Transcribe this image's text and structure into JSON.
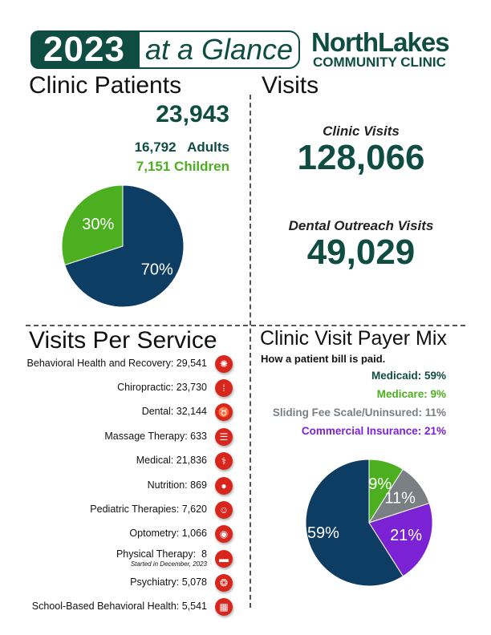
{
  "header": {
    "year": "2023",
    "tagline": "at a Glance",
    "logo_line1": "NorthLakes",
    "logo_line2": "COMMUNITY CLINIC"
  },
  "patients": {
    "title": "Clinic Patients",
    "total": "23,943",
    "adults": "16,792   Adults",
    "children": "7,151 Children"
  },
  "visits": {
    "title": "Visits",
    "clinic_label": "Clinic Visits",
    "clinic_value": "128,066",
    "dental_label": "Dental Outreach Visits",
    "dental_value": "49,029"
  },
  "services": {
    "title": "Visits Per Service",
    "items": [
      {
        "label": "Behavioral Health and Recovery: 29,541",
        "icon": "brain-icon",
        "glyph": "✺"
      },
      {
        "label": "Chiropractic: 23,730",
        "icon": "spine-icon",
        "glyph": "⁞"
      },
      {
        "label": "Dental: 32,144",
        "icon": "tooth-icon",
        "glyph": "♉"
      },
      {
        "label": "Massage Therapy: 633",
        "icon": "massage-icon",
        "glyph": "☰"
      },
      {
        "label": "Medical: 21,836",
        "icon": "stethoscope-icon",
        "glyph": "⚕"
      },
      {
        "label": "Nutrition: 869",
        "icon": "apple-icon",
        "glyph": "●"
      },
      {
        "label": "Pediatric Therapies: 7,620",
        "icon": "child-icon",
        "glyph": "☺"
      },
      {
        "label": "Optometry: 1,066",
        "icon": "eye-icon",
        "glyph": "◉"
      },
      {
        "label": "Physical Therapy:  8",
        "icon": "therapy-bed-icon",
        "glyph": "▬",
        "sub": "Started in December, 2023"
      },
      {
        "label": "Psychiatry: 5,078",
        "icon": "head-icon",
        "glyph": "❂"
      },
      {
        "label": "School-Based Behavioral Health: 5,541",
        "icon": "school-icon",
        "glyph": "▦"
      }
    ]
  },
  "payer": {
    "title": "Clinic Visit Payer Mix",
    "subtitle": "How a patient bill is paid.",
    "rows": [
      {
        "label": "Medicaid: 59%",
        "color": "#0f4d42"
      },
      {
        "label": "Medicare: 9%",
        "color": "#4caf1f"
      },
      {
        "label": "Sliding Fee Scale/Uninsured: 11%",
        "color": "#7a7f84"
      },
      {
        "label": "Commercial Insurance: 21%",
        "color": "#7b22d4"
      }
    ]
  },
  "chart_data": [
    {
      "type": "pie",
      "categories": [
        "Adults",
        "Children"
      ],
      "values": [
        70,
        30
      ],
      "labels": [
        "70%",
        "30%"
      ],
      "colors": [
        "#0e3d63",
        "#4caf1f"
      ],
      "title": ""
    },
    {
      "type": "pie",
      "categories": [
        "Medicaid",
        "Medicare",
        "Sliding Fee Scale/Uninsured",
        "Commercial Insurance"
      ],
      "values": [
        59,
        9,
        11,
        21
      ],
      "labels": [
        "59%",
        "9%",
        "11%",
        "21%"
      ],
      "colors": [
        "#0e3d63",
        "#4caf1f",
        "#7a7f84",
        "#7b22d4"
      ],
      "title": ""
    }
  ]
}
